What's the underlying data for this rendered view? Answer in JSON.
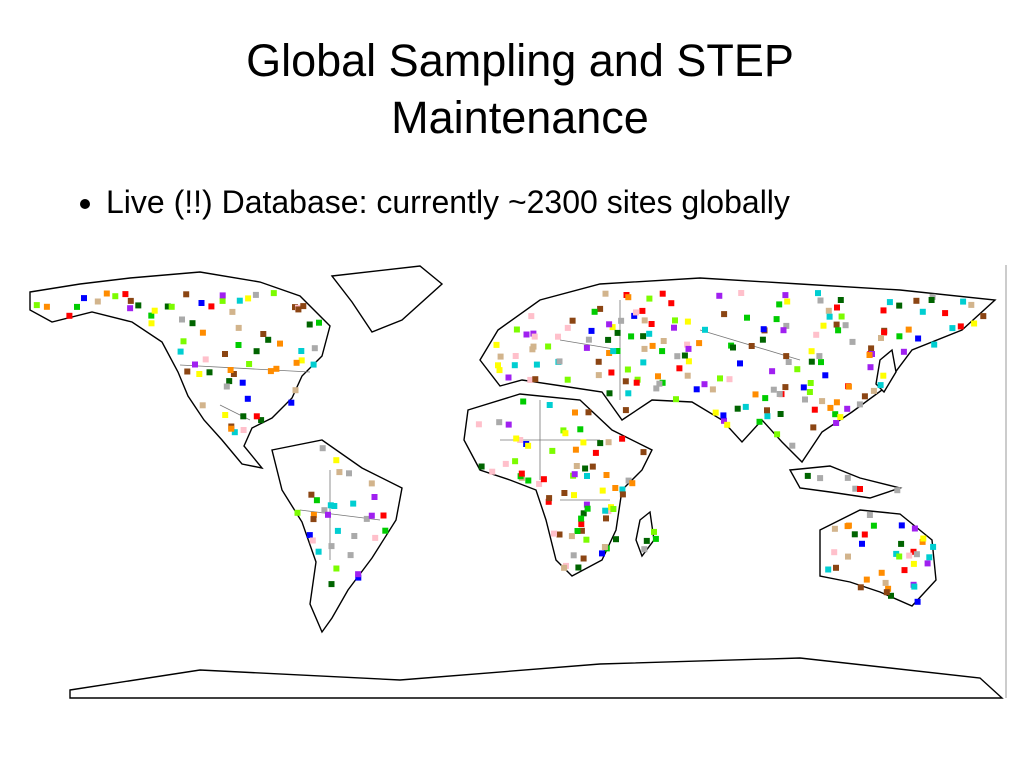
{
  "header": {
    "title": "Global Sampling and STEP Maintenance"
  },
  "bullets": [
    "Live (!!) Database: currently ~2300 sites globally"
  ]
}
